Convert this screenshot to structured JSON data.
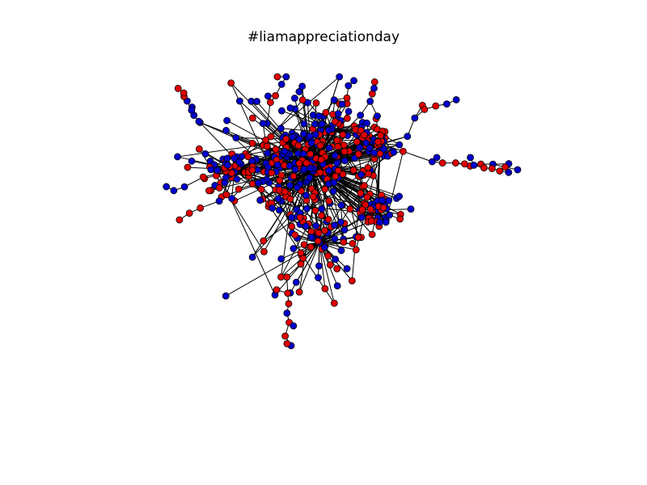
{
  "figure": {
    "title": "#liamappreciationday"
  },
  "graph": {
    "node_colors": {
      "red": "#e00000",
      "blue": "#0000cc"
    },
    "node_outline": "#000000",
    "edge_color": "#000000",
    "node_counts": {
      "red": 320,
      "blue": 310
    }
  }
}
